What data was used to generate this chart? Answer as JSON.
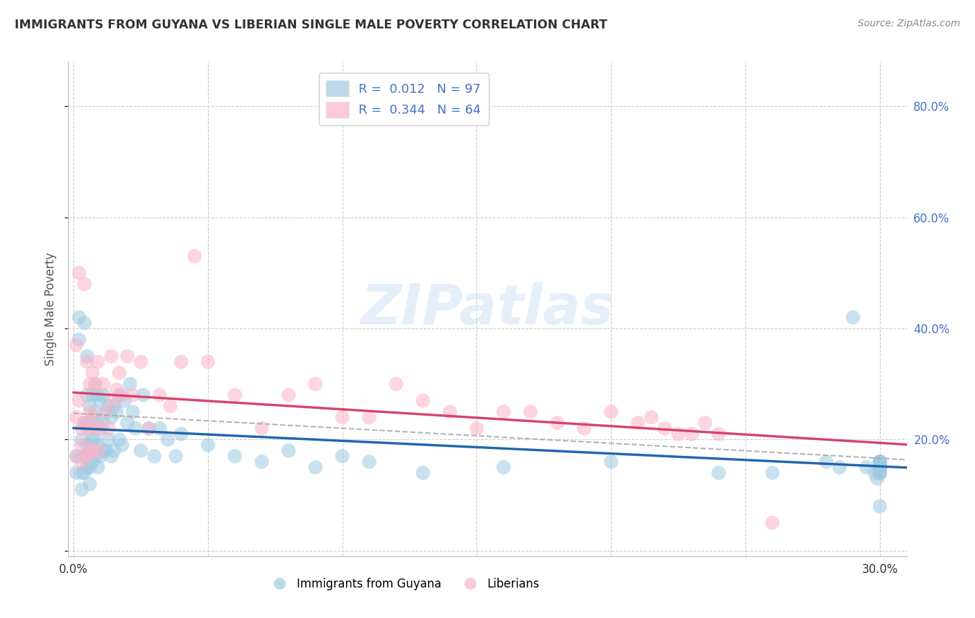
{
  "title": "IMMIGRANTS FROM GUYANA VS LIBERIAN SINGLE MALE POVERTY CORRELATION CHART",
  "source": "Source: ZipAtlas.com",
  "ylabel": "Single Male Poverty",
  "xlim": [
    -0.002,
    0.31
  ],
  "ylim": [
    -0.01,
    0.88
  ],
  "xticks": [
    0.0,
    0.05,
    0.1,
    0.15,
    0.2,
    0.25,
    0.3
  ],
  "yticks": [
    0.0,
    0.2,
    0.4,
    0.6,
    0.8
  ],
  "blue_color": "#9ecae1",
  "pink_color": "#fbb4c9",
  "blue_line_color": "#2166ac",
  "pink_line_color": "#d6456a",
  "gray_line_color": "#aaaaaa",
  "blue_N": 97,
  "pink_N": 64,
  "blue_R": 0.012,
  "pink_R": 0.344,
  "blue_x": [
    0.001,
    0.001,
    0.002,
    0.002,
    0.003,
    0.003,
    0.003,
    0.003,
    0.004,
    0.004,
    0.004,
    0.004,
    0.005,
    0.005,
    0.005,
    0.005,
    0.005,
    0.006,
    0.006,
    0.006,
    0.006,
    0.006,
    0.007,
    0.007,
    0.007,
    0.007,
    0.008,
    0.008,
    0.008,
    0.008,
    0.009,
    0.009,
    0.009,
    0.009,
    0.01,
    0.01,
    0.01,
    0.011,
    0.011,
    0.011,
    0.012,
    0.012,
    0.013,
    0.013,
    0.014,
    0.014,
    0.015,
    0.015,
    0.016,
    0.017,
    0.017,
    0.018,
    0.019,
    0.02,
    0.021,
    0.022,
    0.023,
    0.025,
    0.026,
    0.028,
    0.03,
    0.032,
    0.035,
    0.038,
    0.04,
    0.05,
    0.06,
    0.07,
    0.08,
    0.09,
    0.1,
    0.11,
    0.13,
    0.16,
    0.2,
    0.24,
    0.26,
    0.28,
    0.285,
    0.29,
    0.295,
    0.298,
    0.299,
    0.3,
    0.3,
    0.3,
    0.3,
    0.3,
    0.3,
    0.3,
    0.3,
    0.3,
    0.3,
    0.3,
    0.3,
    0.3,
    0.3
  ],
  "blue_y": [
    0.17,
    0.14,
    0.42,
    0.38,
    0.2,
    0.17,
    0.14,
    0.11,
    0.41,
    0.23,
    0.17,
    0.14,
    0.35,
    0.28,
    0.23,
    0.19,
    0.15,
    0.26,
    0.22,
    0.18,
    0.15,
    0.12,
    0.28,
    0.24,
    0.2,
    0.16,
    0.3,
    0.25,
    0.2,
    0.17,
    0.28,
    0.23,
    0.19,
    0.15,
    0.27,
    0.22,
    0.17,
    0.28,
    0.23,
    0.18,
    0.25,
    0.18,
    0.26,
    0.2,
    0.24,
    0.17,
    0.26,
    0.18,
    0.25,
    0.28,
    0.2,
    0.19,
    0.27,
    0.23,
    0.3,
    0.25,
    0.22,
    0.18,
    0.28,
    0.22,
    0.17,
    0.22,
    0.2,
    0.17,
    0.21,
    0.19,
    0.17,
    0.16,
    0.18,
    0.15,
    0.17,
    0.16,
    0.14,
    0.15,
    0.16,
    0.14,
    0.14,
    0.16,
    0.15,
    0.42,
    0.15,
    0.14,
    0.13,
    0.16,
    0.15,
    0.16,
    0.14,
    0.15,
    0.16,
    0.15,
    0.14,
    0.08,
    0.16,
    0.15,
    0.14,
    0.16,
    0.15
  ],
  "pink_x": [
    0.001,
    0.001,
    0.001,
    0.002,
    0.002,
    0.003,
    0.003,
    0.003,
    0.004,
    0.004,
    0.005,
    0.005,
    0.005,
    0.006,
    0.006,
    0.006,
    0.007,
    0.007,
    0.007,
    0.008,
    0.008,
    0.009,
    0.009,
    0.01,
    0.011,
    0.012,
    0.013,
    0.014,
    0.015,
    0.016,
    0.017,
    0.018,
    0.02,
    0.022,
    0.025,
    0.028,
    0.032,
    0.036,
    0.04,
    0.045,
    0.05,
    0.06,
    0.07,
    0.08,
    0.09,
    0.1,
    0.11,
    0.12,
    0.13,
    0.14,
    0.15,
    0.16,
    0.17,
    0.18,
    0.19,
    0.2,
    0.21,
    0.215,
    0.22,
    0.225,
    0.23,
    0.235,
    0.24,
    0.26
  ],
  "pink_y": [
    0.37,
    0.24,
    0.17,
    0.5,
    0.27,
    0.22,
    0.19,
    0.16,
    0.48,
    0.23,
    0.34,
    0.22,
    0.17,
    0.3,
    0.25,
    0.18,
    0.32,
    0.24,
    0.18,
    0.3,
    0.22,
    0.34,
    0.18,
    0.22,
    0.3,
    0.25,
    0.22,
    0.35,
    0.27,
    0.29,
    0.32,
    0.28,
    0.35,
    0.28,
    0.34,
    0.22,
    0.28,
    0.26,
    0.34,
    0.53,
    0.34,
    0.28,
    0.22,
    0.28,
    0.3,
    0.24,
    0.24,
    0.3,
    0.27,
    0.25,
    0.22,
    0.25,
    0.25,
    0.23,
    0.22,
    0.25,
    0.23,
    0.24,
    0.22,
    0.21,
    0.21,
    0.23,
    0.21,
    0.05
  ]
}
